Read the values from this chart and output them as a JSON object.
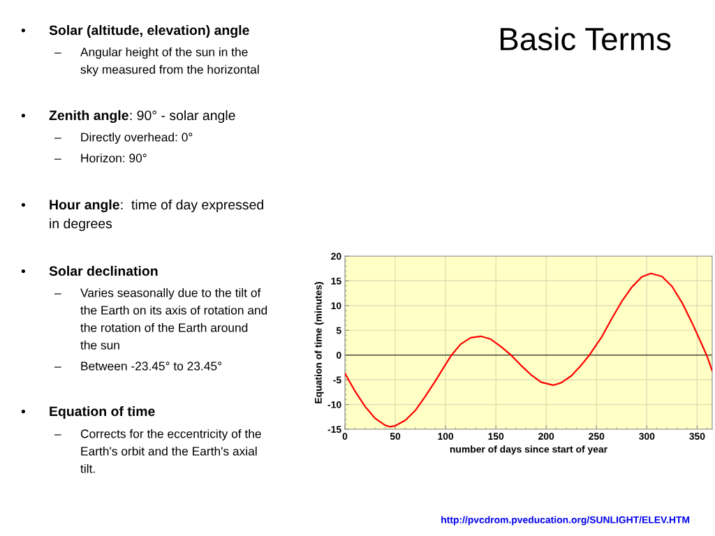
{
  "chart_data": [
    {
      "type": "other",
      "title": "Basic Terms",
      "annotations": [
        "•",
        "Solar (altitude, elevation) angle",
        "–",
        "Angular height of the sun in the",
        "sky measured from the horizontal",
        "•",
        "Zenith angle",
        ": 90° - solar angle",
        "–",
        "Directly overhead: 0°",
        "–",
        "Horizon: 90°",
        "•",
        "Hour angle",
        ":  time of day expressed",
        "in degrees",
        "•",
        "Solar declination",
        "–",
        "Varies seasonally due to the tilt of",
        "the Earth on its axis of rotation and",
        "the rotation of the Earth around",
        "the sun",
        "–",
        "Between -23.45° to 23.45°",
        "•",
        "Equation of time",
        "–",
        "Corrects for the eccentricity of the",
        "Earth's orbit and the Earth's axial",
        "tilt.",
        "http://pvcdrom.pveducation.org/SUNLIGHT/ELEV.HTM"
      ]
    },
    {
      "type": "line",
      "xlabel": "number of days since start of year",
      "ylabel": "Equation of time (minutes)",
      "x": [
        0,
        10,
        20,
        30,
        40,
        45,
        50,
        60,
        70,
        80,
        90,
        100,
        106,
        115,
        125,
        135,
        145,
        155,
        165,
        175,
        185,
        195,
        207,
        215,
        225,
        235,
        243,
        255,
        265,
        275,
        285,
        295,
        304,
        315,
        325,
        335,
        345,
        355,
        360,
        365
      ],
      "series": [
        {
          "color": "#ff0000",
          "values": [
            -3.7,
            -7.3,
            -10.4,
            -12.8,
            -14.2,
            -14.5,
            -14.3,
            -13.2,
            -11.2,
            -8.3,
            -5.2,
            -1.9,
            0,
            2.2,
            3.5,
            3.8,
            3.2,
            1.7,
            0,
            -2.1,
            -4.0,
            -5.5,
            -6.1,
            -5.6,
            -4.2,
            -2.0,
            0,
            3.6,
            7.3,
            10.8,
            13.7,
            15.8,
            16.5,
            15.9,
            13.9,
            10.6,
            6.5,
            2.0,
            -0.3,
            -3.2
          ]
        }
      ],
      "xlim": [
        0,
        365
      ],
      "xticks": [
        0,
        50,
        100,
        150,
        200,
        250,
        300,
        350
      ],
      "ylim": [
        -15,
        20
      ],
      "yticks": [
        -15,
        -10,
        -5,
        0,
        5,
        10,
        15,
        20
      ],
      "grid": true,
      "ref_lines": [
        {
          "axis": "y",
          "value": 0,
          "color": "#4a4a3a"
        }
      ]
    }
  ]
}
